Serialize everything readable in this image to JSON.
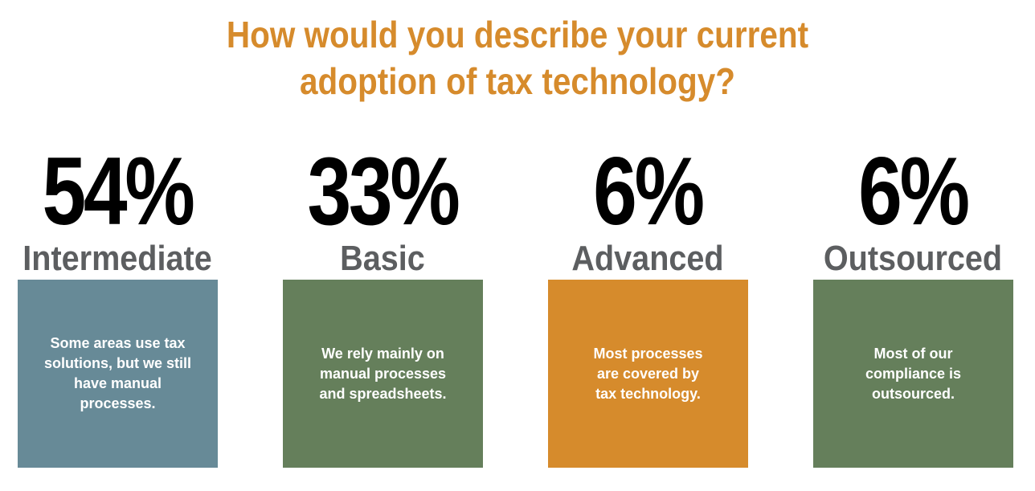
{
  "title_lines": [
    "How would you describe your current",
    "adoption of tax technology?"
  ],
  "colors": {
    "title": "#d68b2c",
    "percent": "#000000",
    "label": "#5c5e60",
    "box_text": "#ffffff"
  },
  "chart_data": {
    "type": "bar",
    "title": "How would you describe your current adoption of tax technology?",
    "categories": [
      "Intermediate",
      "Basic",
      "Advanced",
      "Outsourced"
    ],
    "values": [
      54,
      33,
      6,
      6
    ],
    "unit": "%"
  },
  "items": [
    {
      "percent": "54%",
      "label": "Intermediate",
      "description": "Some areas use tax\nsolutions, but we still\nhave manual processes.",
      "color": "#678a97"
    },
    {
      "percent": "33%",
      "label": "Basic",
      "description": "We rely mainly on\nmanual processes\nand spreadsheets.",
      "color": "#657f5b"
    },
    {
      "percent": "6%",
      "label": "Advanced",
      "description": "Most processes\nare covered by\ntax technology.",
      "color": "#d68b2c"
    },
    {
      "percent": "6%",
      "label": "Outsourced",
      "description": "Most of our\ncompliance is\noutsourced.",
      "color": "#657f5b"
    }
  ]
}
